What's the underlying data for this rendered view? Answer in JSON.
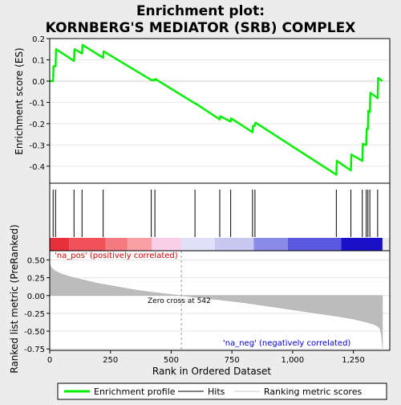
{
  "chart_data": {
    "type": "line",
    "title": "Enrichment plot: KORNBERG'S MEDIATOR (SRB) COMPLEX",
    "xlabel": "Rank in Ordered Dataset",
    "xlim": [
      0,
      1400
    ],
    "x_ticks": [
      "0",
      "250",
      "500",
      "750",
      "1,000",
      "1,250"
    ],
    "x_tick_values": [
      0,
      250,
      500,
      750,
      1000,
      1250
    ],
    "top_panel": {
      "ylabel": "Enrichment score (ES)",
      "ylim": [
        -0.48,
        0.2
      ],
      "y_ticks": [
        "-0.4",
        "-0.3",
        "-0.2",
        "-0.1",
        "0.0",
        "0.1",
        "0.2"
      ],
      "y_tick_values": [
        -0.4,
        -0.3,
        -0.2,
        -0.1,
        0.0,
        0.1,
        0.2
      ],
      "series": [
        {
          "name": "Enrichment profile",
          "color": "#00ee00",
          "x": [
            0,
            14,
            16,
            24,
            26,
            100,
            102,
            133,
            135,
            220,
            222,
            418,
            420,
            433,
            435,
            598,
            600,
            700,
            702,
            745,
            747,
            835,
            837,
            845,
            847,
            1180,
            1182,
            1240,
            1242,
            1287,
            1289,
            1303,
            1305,
            1310,
            1312,
            1318,
            1320,
            1350,
            1352,
            1370
          ],
          "y": [
            0.0,
            0.0,
            0.07,
            0.07,
            0.15,
            0.095,
            0.15,
            0.13,
            0.17,
            0.11,
            0.14,
            0.005,
            0.005,
            0.005,
            0.01,
            -0.105,
            -0.105,
            -0.18,
            -0.165,
            -0.19,
            -0.175,
            -0.24,
            -0.21,
            -0.21,
            -0.195,
            -0.44,
            -0.375,
            -0.42,
            -0.345,
            -0.375,
            -0.295,
            -0.3,
            -0.225,
            -0.225,
            -0.14,
            -0.145,
            -0.055,
            -0.08,
            0.015,
            0.0
          ]
        }
      ],
      "hits": [
        14,
        24,
        100,
        133,
        220,
        418,
        433,
        598,
        700,
        745,
        835,
        845,
        1180,
        1240,
        1287,
        1303,
        1310,
        1318,
        1350
      ]
    },
    "bottom_panel": {
      "ylabel": "Ranked list metric (PreRanked)",
      "ylim": [
        -0.77,
        0.63
      ],
      "y_ticks": [
        "-0.75",
        "-0.50",
        "-0.25",
        "0.00",
        "0.25",
        "0.50"
      ],
      "y_tick_values": [
        -0.75,
        -0.5,
        -0.25,
        0.0,
        0.25,
        0.5
      ],
      "metric_curve": {
        "x": [
          0,
          5,
          20,
          50,
          100,
          150,
          200,
          250,
          300,
          350,
          400,
          450,
          500,
          542,
          600,
          700,
          800,
          900,
          1000,
          1100,
          1200,
          1250,
          1300,
          1330,
          1350,
          1360,
          1366,
          1370
        ],
        "y": [
          0.46,
          0.4,
          0.35,
          0.3,
          0.25,
          0.21,
          0.17,
          0.14,
          0.11,
          0.08,
          0.055,
          0.035,
          0.015,
          0.0,
          -0.025,
          -0.06,
          -0.1,
          -0.15,
          -0.2,
          -0.25,
          -0.3,
          -0.33,
          -0.37,
          -0.4,
          -0.43,
          -0.47,
          -0.55,
          -0.74
        ]
      },
      "zero_cross": 542,
      "annotations": {
        "pos": "'na_pos' (positively correlated)",
        "neg": "'na_neg' (negatively correlated)",
        "zero": "Zero cross at 542"
      }
    },
    "heat_bar": {
      "segments": [
        {
          "from": 0,
          "to": 80,
          "color": "#e8303a"
        },
        {
          "from": 80,
          "to": 230,
          "color": "#f05058"
        },
        {
          "from": 230,
          "to": 320,
          "color": "#f47a80"
        },
        {
          "from": 320,
          "to": 420,
          "color": "#f8a0a4"
        },
        {
          "from": 420,
          "to": 542,
          "color": "#fbcfe8"
        },
        {
          "from": 542,
          "to": 680,
          "color": "#e0e0f8"
        },
        {
          "from": 680,
          "to": 840,
          "color": "#c8c8f0"
        },
        {
          "from": 840,
          "to": 980,
          "color": "#8a8ae8"
        },
        {
          "from": 980,
          "to": 1200,
          "color": "#5a5ae0"
        },
        {
          "from": 1200,
          "to": 1370,
          "color": "#1a10c8"
        }
      ]
    },
    "legend": [
      "Enrichment profile",
      "Hits",
      "Ranking metric scores"
    ]
  }
}
